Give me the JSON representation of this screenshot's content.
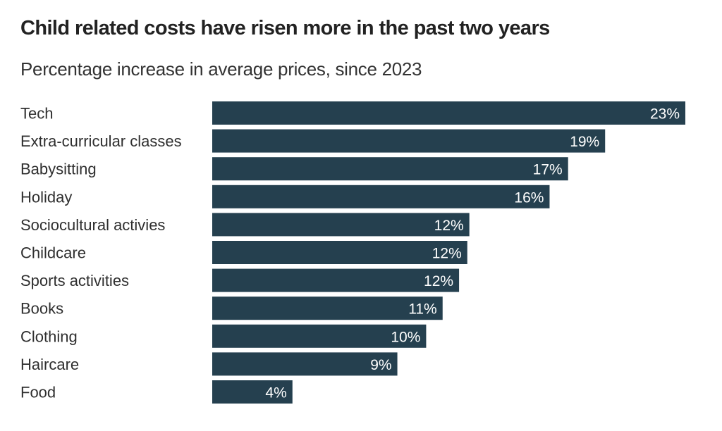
{
  "chart_data": {
    "type": "bar",
    "orientation": "horizontal",
    "title": "Child related costs have risen more in the past two years",
    "subtitle": "Percentage increase in average prices, since 2023",
    "xlabel": "",
    "ylabel": "",
    "xlim": [
      0,
      23
    ],
    "grid": false,
    "legend": "none",
    "bar_color": "#25404f",
    "value_label_color": "#ffffff",
    "categories": [
      "Tech",
      "Extra-curricular classes",
      "Babysitting",
      "Holiday",
      "Sociocultural activies",
      "Childcare",
      "Sports activities",
      "Books",
      "Clothing",
      "Haircare",
      "Food"
    ],
    "values": [
      23,
      19.1,
      17.3,
      16.4,
      12.5,
      12.4,
      12.0,
      11.2,
      10.4,
      9.0,
      3.9
    ],
    "value_labels": [
      "23%",
      "19%",
      "17%",
      "16%",
      "12%",
      "12%",
      "12%",
      "11%",
      "10%",
      "9%",
      "4%"
    ]
  }
}
